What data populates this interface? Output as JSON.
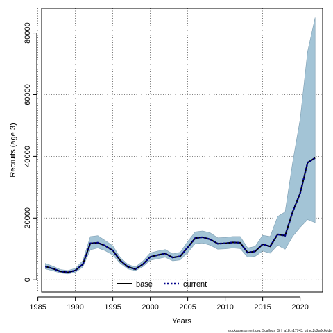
{
  "chart_data": {
    "type": "line",
    "title": "",
    "xlabel": "Years",
    "ylabel": "Recruits (age 3)",
    "xlim": [
      1985.5,
      2023
    ],
    "ylim": [
      -4000,
      88000
    ],
    "x_ticks": [
      1985,
      1990,
      1995,
      2000,
      2005,
      2010,
      2015,
      2020
    ],
    "y_ticks": [
      0,
      20000,
      40000,
      60000,
      80000
    ],
    "grid": true,
    "legend_position": "bottom-center",
    "colors": {
      "band": "#a3c4d6",
      "band_edge": "#7f9fb3",
      "base": "#000000",
      "current": "#00008b"
    },
    "x": [
      1986,
      1987,
      1988,
      1989,
      1990,
      1991,
      1992,
      1993,
      1994,
      1995,
      1996,
      1997,
      1998,
      1999,
      2000,
      2001,
      2002,
      2003,
      2004,
      2005,
      2006,
      2007,
      2008,
      2009,
      2010,
      2011,
      2012,
      2013,
      2014,
      2015,
      2016,
      2017,
      2018,
      2019,
      2020,
      2021,
      2022
    ],
    "series": [
      {
        "name": "base",
        "style": "solid",
        "values": [
          4300,
          3600,
          2700,
          2400,
          3000,
          5000,
          11800,
          12000,
          11000,
          9500,
          6200,
          4200,
          3400,
          5000,
          7400,
          8000,
          8500,
          7200,
          7600,
          10500,
          13500,
          13800,
          13100,
          11700,
          11800,
          12100,
          12000,
          8800,
          9200,
          11500,
          10800,
          14700,
          14300,
          22000,
          28000,
          38000,
          39500
        ]
      },
      {
        "name": "current",
        "style": "dotted",
        "values": [
          4300,
          3600,
          2700,
          2400,
          3000,
          5000,
          11800,
          12000,
          11000,
          9500,
          6200,
          4200,
          3400,
          5000,
          7400,
          8000,
          8500,
          7200,
          7600,
          10500,
          13500,
          13800,
          13100,
          11700,
          11800,
          12100,
          12000,
          8800,
          9200,
          11500,
          10800,
          14700,
          14300,
          22000,
          28000,
          38000,
          39500
        ]
      }
    ],
    "interval": {
      "lower": [
        3500,
        2900,
        2200,
        1900,
        2400,
        4100,
        9700,
        10300,
        9400,
        8000,
        5300,
        3500,
        2900,
        4200,
        6300,
        6800,
        7300,
        6100,
        6400,
        8800,
        11700,
        11900,
        11200,
        9900,
        10000,
        10300,
        10100,
        7300,
        7600,
        9300,
        8600,
        11200,
        9900,
        14000,
        17000,
        19500,
        18500
      ],
      "upper": [
        5300,
        4400,
        3300,
        3000,
        3700,
        6200,
        14000,
        14300,
        12700,
        11000,
        7200,
        5000,
        4100,
        6000,
        8700,
        9300,
        9800,
        8400,
        8900,
        12400,
        15500,
        15800,
        15200,
        13600,
        13700,
        14000,
        14000,
        10300,
        10800,
        14400,
        14000,
        20500,
        22000,
        38000,
        52000,
        74000,
        85000
      ]
    },
    "caption": "stockassessment.org, Scallops_SH_a18, r17743, git ec2c2a0c6dde"
  }
}
